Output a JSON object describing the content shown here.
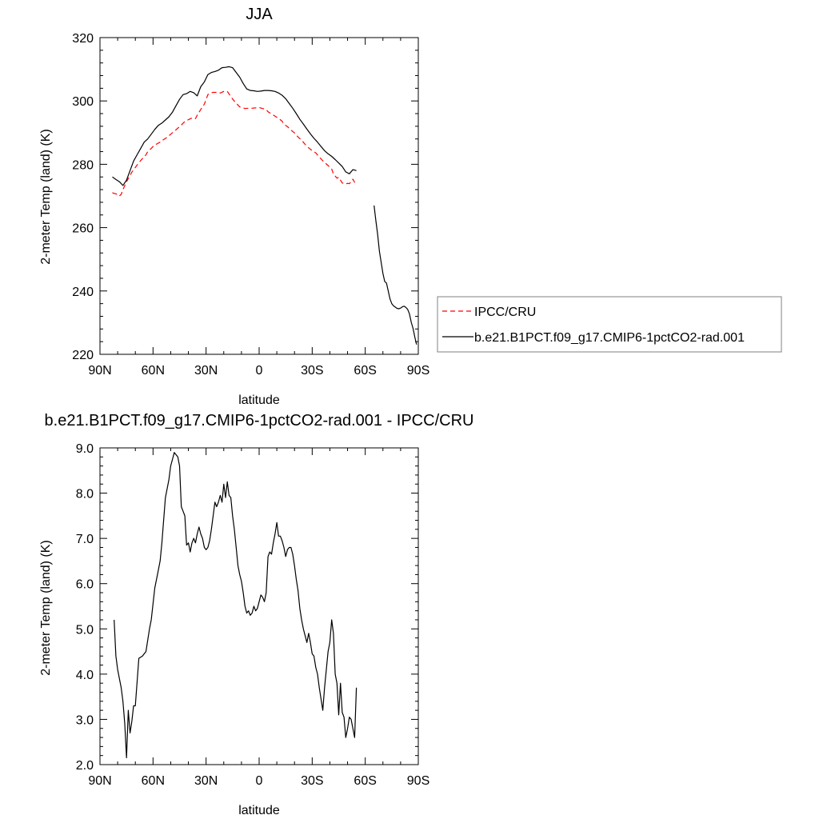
{
  "chart_data": [
    {
      "type": "line",
      "title": "JJA",
      "xlabel": "latitude",
      "ylabel": "2-meter Temp (land) (K)",
      "xlim": [
        90,
        -90
      ],
      "ylim": [
        220,
        320
      ],
      "x_ticks": [
        90,
        60,
        30,
        0,
        -30,
        -60,
        -90
      ],
      "x_tick_labels": [
        "90N",
        "60N",
        "30N",
        "0",
        "30S",
        "60S",
        "90S"
      ],
      "y_ticks": [
        220,
        240,
        260,
        280,
        300,
        320
      ],
      "y_tick_labels": [
        "220",
        "240",
        "260",
        "280",
        "300",
        "320"
      ],
      "grid": false,
      "legend": {
        "placement": "right, outside",
        "entries": [
          "IPCC/CRU",
          "b.e21.B1PCT.f09_g17.CMIP6-1pctCO2-rad.001"
        ]
      },
      "series": [
        {
          "name": "IPCC/CRU",
          "color": "#ff0000",
          "style": "dashed",
          "x": [
            83,
            82,
            80,
            79,
            78,
            77,
            75,
            73,
            72,
            70,
            68,
            66,
            64,
            63,
            61,
            60,
            58,
            56,
            54,
            52,
            50,
            48,
            46,
            44,
            42,
            40,
            38,
            36,
            35,
            33,
            31,
            29,
            27,
            26,
            24,
            22,
            20,
            18,
            17,
            15,
            13,
            11,
            9,
            8,
            6,
            4,
            2,
            0,
            -2,
            -4,
            -5,
            -7,
            -9,
            -11,
            -13,
            -14,
            -16,
            -18,
            -20,
            -22,
            -24,
            -26,
            -28,
            -30,
            -32,
            -34,
            -36,
            -38,
            -40,
            -41,
            -42,
            -43,
            -44,
            -45,
            -46,
            -47,
            -49,
            -50,
            -51,
            -52,
            -53,
            -54,
            -55
          ],
          "y": [
            271,
            270.8,
            270.5,
            270,
            270.5,
            272,
            274.5,
            276.5,
            277.5,
            279,
            280.5,
            281.8,
            283,
            284,
            285,
            285.6,
            286.4,
            287,
            287.8,
            288.5,
            289.5,
            290.4,
            291.4,
            292.4,
            293.5,
            294.1,
            294.6,
            294.4,
            295.5,
            297.3,
            299,
            302,
            302.6,
            302.7,
            302.7,
            302.5,
            303,
            303,
            302.2,
            300.6,
            299.3,
            298.1,
            297.8,
            297.6,
            297.7,
            297.7,
            297.8,
            297.9,
            297.6,
            297.3,
            296.6,
            295.9,
            295.2,
            294.5,
            293.6,
            292.6,
            291.9,
            290.8,
            289.9,
            288.6,
            287.6,
            286.3,
            285.2,
            284.3,
            283.6,
            282.3,
            281.1,
            280.1,
            279.1,
            278.5,
            277,
            276.3,
            275.6,
            275.9,
            275,
            274.1,
            273.8,
            274,
            273.9,
            274.5,
            275.3,
            274.3,
            273.6
          ]
        },
        {
          "name": "b.e21.B1PCT.f09_g17.CMIP6-1pctCO2-rad.001",
          "color": "#000000",
          "style": "solid",
          "segments": [
            {
              "x": [
                83,
                81,
                79,
                77,
                75,
                73,
                71,
                69,
                67,
                65,
                63,
                61,
                59,
                57,
                55,
                53,
                51,
                49,
                47,
                45,
                43,
                41,
                39,
                37,
                35,
                33,
                31,
                29,
                27,
                25,
                23,
                21,
                19,
                17,
                15,
                13,
                11,
                9,
                7,
                5,
                3,
                1,
                -1,
                -3,
                -5,
                -7,
                -9,
                -11,
                -13,
                -15,
                -17,
                -19,
                -21,
                -23,
                -25,
                -27,
                -29,
                -31,
                -33,
                -35,
                -37,
                -39,
                -41,
                -43,
                -45,
                -47,
                -49,
                -51,
                -53,
                -55
              ],
              "y": [
                276,
                275.2,
                274.5,
                273.3,
                275,
                278,
                281,
                283,
                285,
                287,
                288,
                289.5,
                291,
                292.3,
                293,
                294,
                295,
                296.5,
                298.5,
                300.5,
                302,
                302.3,
                303,
                302.6,
                301.6,
                304.5,
                306,
                308.3,
                309,
                309.3,
                309.7,
                310.5,
                310.6,
                310.8,
                310.5,
                309,
                307.5,
                305.5,
                303.8,
                303.3,
                303.2,
                303,
                303.1,
                303.3,
                303.3,
                303.2,
                303,
                302.5,
                301.8,
                300.7,
                299.2,
                297.7,
                296,
                294.2,
                292.7,
                291.1,
                289.6,
                288.2,
                287,
                285.6,
                284.3,
                283.3,
                282.5,
                281.5,
                280.4,
                279.3,
                277.6,
                277,
                278.3,
                278
              ]
            },
            {
              "x": [
                -65,
                -66,
                -67,
                -68,
                -69,
                -70,
                -71,
                -72,
                -73,
                -74,
                -75,
                -76,
                -77,
                -78,
                -79,
                -80,
                -81,
                -82,
                -83,
                -84,
                -85,
                -86,
                -87,
                -88,
                -89
              ],
              "y": [
                267,
                262.3,
                258,
                252.5,
                249,
                245.5,
                243,
                242.5,
                240,
                237.5,
                236,
                235.3,
                234.9,
                234.5,
                234.4,
                234.6,
                235,
                235.2,
                234.8,
                234.2,
                232.8,
                230.1,
                228.2,
                225.5,
                223.1
              ]
            }
          ]
        }
      ]
    },
    {
      "type": "line",
      "title": "b.e21.B1PCT.f09_g17.CMIP6-1pctCO2-rad.001 - IPCC/CRU",
      "xlabel": "latitude",
      "ylabel": "2-meter Temp (land) (K)",
      "xlim": [
        90,
        -90
      ],
      "ylim": [
        2.0,
        9.0
      ],
      "x_ticks": [
        90,
        60,
        30,
        0,
        -30,
        -60,
        -90
      ],
      "x_tick_labels": [
        "90N",
        "60N",
        "30N",
        "0",
        "30S",
        "60S",
        "90S"
      ],
      "y_ticks": [
        2,
        3,
        4,
        5,
        6,
        7,
        8,
        9
      ],
      "y_tick_labels": [
        "2.0",
        "3.0",
        "4.0",
        "5.0",
        "6.0",
        "7.0",
        "8.0",
        "9.0"
      ],
      "grid": false,
      "series": [
        {
          "color": "#000000",
          "style": "solid",
          "x": [
            82,
            81,
            80,
            79,
            78,
            77,
            76,
            75,
            74,
            73,
            72,
            71,
            70,
            68,
            66,
            64,
            62,
            61,
            59,
            57,
            56,
            55,
            53,
            51,
            50,
            49,
            48,
            47,
            46,
            45,
            44,
            43,
            42,
            41,
            40,
            39,
            38,
            37,
            36,
            35,
            34,
            33,
            32,
            31,
            30,
            29,
            28,
            27,
            26,
            25,
            24,
            23,
            22,
            21,
            20,
            19,
            18,
            17,
            16,
            15,
            14,
            13,
            12,
            11,
            10,
            9,
            8,
            7,
            6,
            5,
            4,
            3,
            2,
            1,
            0,
            -1,
            -2,
            -3,
            -4,
            -5,
            -6,
            -7,
            -8,
            -9,
            -10,
            -11,
            -12,
            -13,
            -14,
            -15,
            -16,
            -17,
            -18,
            -19,
            -20,
            -21,
            -22,
            -23,
            -24,
            -25,
            -26,
            -27,
            -28,
            -29,
            -30,
            -31,
            -32,
            -33,
            -34,
            -35,
            -36,
            -37,
            -38,
            -39,
            -40,
            -41,
            -42,
            -43,
            -44,
            -45,
            -46,
            -47,
            -48,
            -49,
            -50,
            -51,
            -52,
            -53,
            -54,
            -55
          ],
          "y": [
            5.2,
            4.4,
            4.1,
            3.9,
            3.7,
            3.4,
            2.9,
            2.15,
            3.2,
            2.7,
            2.95,
            3.3,
            3.3,
            4.35,
            4.4,
            4.5,
            5.0,
            5.2,
            5.9,
            6.3,
            6.5,
            6.9,
            7.9,
            8.3,
            8.6,
            8.75,
            8.9,
            8.85,
            8.8,
            8.6,
            7.7,
            7.6,
            7.5,
            6.85,
            6.9,
            6.7,
            6.9,
            7.0,
            6.9,
            7.1,
            7.25,
            7.1,
            7.0,
            6.8,
            6.75,
            6.8,
            6.95,
            7.2,
            7.5,
            7.8,
            7.7,
            7.8,
            7.95,
            7.8,
            8.2,
            7.9,
            8.25,
            7.95,
            7.9,
            7.5,
            7.2,
            6.8,
            6.4,
            6.2,
            6.05,
            5.8,
            5.5,
            5.35,
            5.4,
            5.3,
            5.35,
            5.5,
            5.4,
            5.45,
            5.6,
            5.75,
            5.7,
            5.6,
            5.8,
            6.6,
            6.7,
            6.65,
            6.9,
            7.1,
            7.35,
            7.05,
            7.05,
            6.95,
            6.8,
            6.6,
            6.75,
            6.8,
            6.8,
            6.65,
            6.4,
            6.1,
            5.85,
            5.45,
            5.2,
            5.0,
            4.85,
            4.7,
            4.9,
            4.7,
            4.45,
            4.4,
            4.15,
            4.0,
            3.7,
            3.45,
            3.2,
            3.7,
            4.1,
            4.5,
            4.7,
            5.2,
            4.9,
            4.0,
            3.8,
            3.1,
            3.8,
            3.15,
            3.05,
            2.6,
            2.8,
            3.05,
            3.0,
            2.8,
            2.6,
            3.7
          ]
        }
      ]
    }
  ]
}
